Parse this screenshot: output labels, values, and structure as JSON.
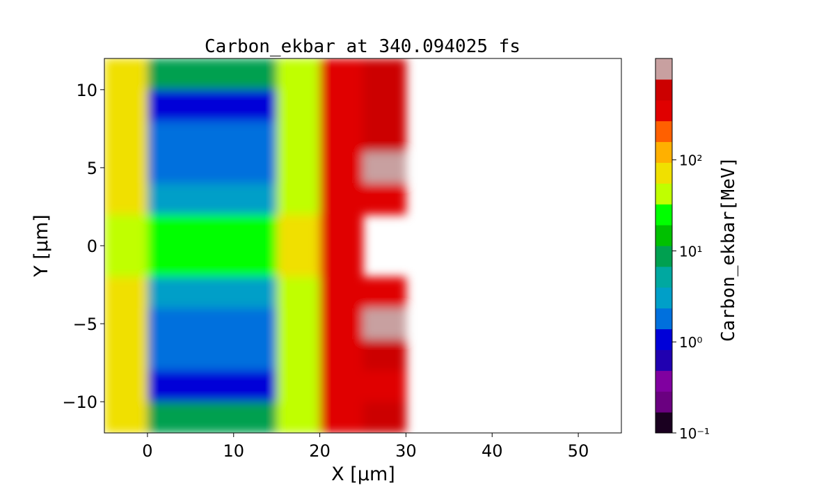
{
  "chart_data": {
    "type": "heatmap",
    "title": "Carbon_ekbar at 340.094025 fs",
    "x_label": "X [μm]",
    "y_label": "Y [μm]",
    "colorbar_label": "Carbon_ekbar[MeV]",
    "x": [
      -2.5,
      2.5,
      7.5,
      12.5,
      17.5,
      22.5,
      27.5,
      32.5,
      37.5,
      42.5,
      47.5,
      52.5
    ],
    "y": [
      11,
      9,
      7,
      5,
      3,
      1,
      -1,
      -3,
      -5,
      -7,
      -9,
      -11
    ],
    "z": [
      [
        60,
        10,
        8,
        10,
        40,
        400,
        500,
        null,
        null,
        null,
        null,
        null
      ],
      [
        80,
        1,
        1,
        1,
        40,
        400,
        500,
        null,
        null,
        null,
        null,
        null
      ],
      [
        80,
        1.5,
        1.5,
        1.5,
        40,
        400,
        500,
        null,
        null,
        null,
        null,
        null
      ],
      [
        80,
        1.5,
        1.5,
        1.5,
        40,
        400,
        900,
        null,
        null,
        null,
        null,
        null
      ],
      [
        80,
        3,
        3,
        3,
        50,
        400,
        400,
        null,
        null,
        null,
        null,
        null
      ],
      [
        40,
        20,
        20,
        30,
        60,
        300,
        null,
        null,
        null,
        null,
        null,
        null
      ],
      [
        40,
        20,
        20,
        30,
        60,
        300,
        null,
        null,
        null,
        null,
        null,
        null
      ],
      [
        80,
        3,
        3,
        3,
        50,
        400,
        300,
        null,
        null,
        null,
        null,
        null
      ],
      [
        80,
        1.5,
        1.5,
        1.5,
        40,
        400,
        900,
        null,
        null,
        null,
        null,
        null
      ],
      [
        80,
        1.5,
        1.5,
        1.5,
        40,
        400,
        500,
        null,
        null,
        null,
        null,
        null
      ],
      [
        80,
        1,
        1,
        1,
        40,
        400,
        400,
        null,
        null,
        null,
        null,
        null
      ],
      [
        60,
        10,
        8,
        10,
        40,
        400,
        500,
        null,
        null,
        null,
        null,
        null
      ]
    ],
    "xlim": [
      -5,
      55
    ],
    "ylim": [
      -12,
      12
    ],
    "xticks": [
      0,
      10,
      20,
      30,
      40,
      50
    ],
    "yticks": [
      {
        "value": -10,
        "label": "−10"
      },
      {
        "value": -5,
        "label": "−5"
      },
      0,
      5,
      10
    ],
    "clim": [
      0.1,
      1300
    ],
    "color_scale": "log",
    "cticks": [
      {
        "value": 0.1,
        "label": "10⁻¹"
      },
      {
        "value": 1,
        "label": "10⁰"
      },
      {
        "value": 10,
        "label": "10¹"
      },
      {
        "value": 100,
        "label": "10²"
      }
    ],
    "colormap": [
      "#1a0020",
      "#6a0080",
      "#8000a0",
      "#2000b0",
      "#0000d8",
      "#0070dd",
      "#009fc8",
      "#00a8a0",
      "#00a050",
      "#00c000",
      "#00ff00",
      "#c0ff00",
      "#f0e000",
      "#ffb000",
      "#ff6000",
      "#e00000",
      "#cc0000",
      "#c8a0a0"
    ]
  }
}
